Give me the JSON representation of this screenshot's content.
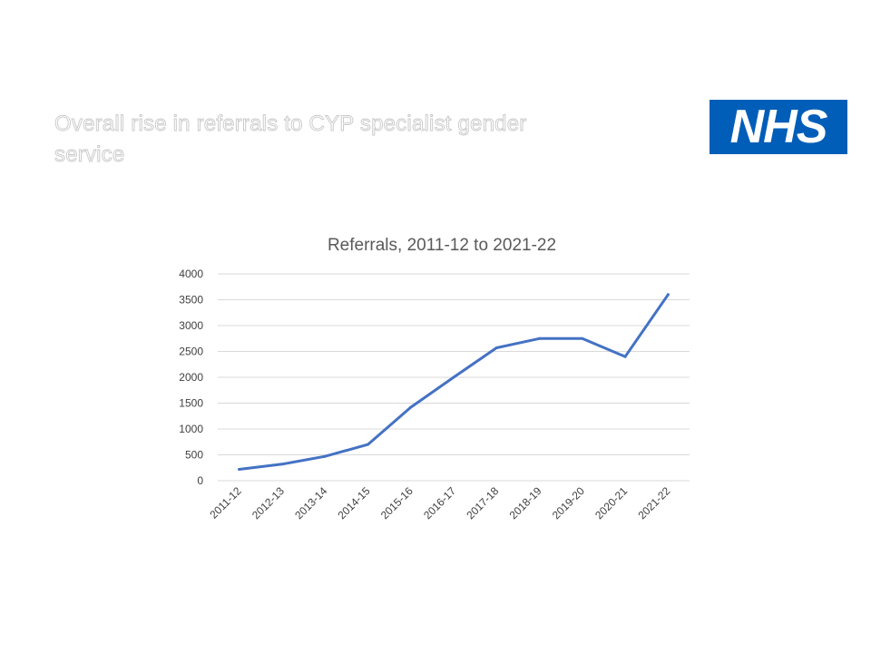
{
  "slide": {
    "title": "Overall rise in referrals to CYP specialist gender service"
  },
  "logo": {
    "text": "NHS",
    "color": "#005eb8"
  },
  "chart_data": {
    "type": "line",
    "title": "Referrals, 2011-12 to 2021-22",
    "xlabel": "",
    "ylabel": "",
    "categories": [
      "2011-12",
      "2012-13",
      "2013-14",
      "2014-15",
      "2015-16",
      "2016-17",
      "2017-18",
      "2018-19",
      "2019-20",
      "2020-21",
      "2021-22"
    ],
    "series": [
      {
        "values": [
          220,
          320,
          470,
          700,
          1420,
          2000,
          2570,
          2750,
          2750,
          2400,
          3600
        ],
        "color": "#4472c4"
      }
    ],
    "ylim": [
      0,
      4000
    ],
    "yticks": [
      0,
      500,
      1000,
      1500,
      2000,
      2500,
      3000,
      3500,
      4000
    ],
    "grid": "horizontal",
    "legend": "none"
  }
}
